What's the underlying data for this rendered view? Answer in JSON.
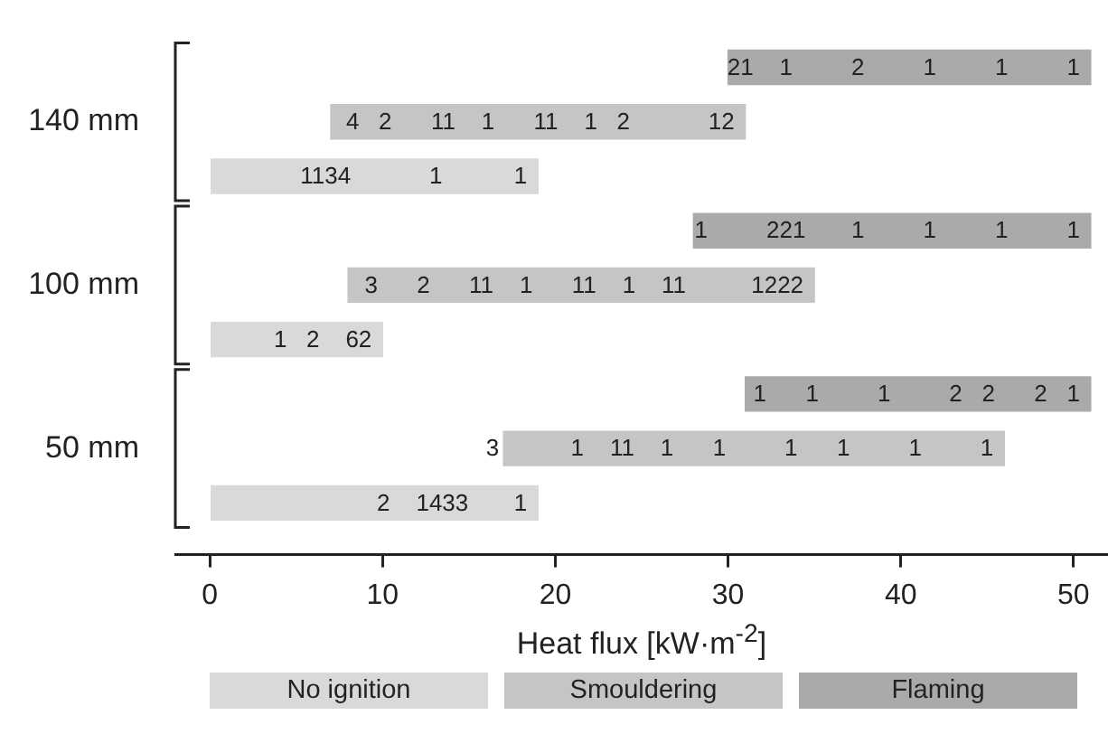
{
  "chart_data": {
    "type": "bar",
    "orientation": "horizontal",
    "xlabel": "Heat flux [kW·m$^{-2}$]",
    "categories": [
      null,
      "140 mm",
      null,
      null,
      "100 mm",
      null,
      null,
      "50 mm",
      null
    ],
    "xlim": [
      -2,
      52
    ],
    "xticks": [
      0,
      10,
      20,
      30,
      40,
      50
    ],
    "legend": "bottom",
    "annotations": [
      "21    1         2         1         1         1",
      "4   2      11    1      11    1   2            12",
      "1134            1           1",
      "1         221       1         1         1         1",
      "3      2      11    1      11    1    11          1222",
      "1   2    62",
      "1      1         1         2   2      2   1",
      "3           1    11    1      1         1      1         1         1",
      "2    1433       1"
    ],
    "series": [
      {
        "name": "No ignition",
        "color": "#d9d9d9",
        "values": [
          null,
          null,
          19,
          null,
          null,
          10,
          null,
          null,
          19
        ],
        "base": [
          null,
          null,
          0,
          null,
          null,
          0,
          null,
          null,
          0
        ]
      },
      {
        "name": "Smouldering",
        "color": "#c4c5c4",
        "values": [
          null,
          24,
          null,
          null,
          27,
          null,
          null,
          29,
          null
        ],
        "base": [
          null,
          7,
          null,
          null,
          8,
          null,
          null,
          17,
          null
        ]
      },
      {
        "name": "Flaming",
        "color": "#aaaaaa",
        "values": [
          21,
          null,
          null,
          23,
          null,
          null,
          20,
          null,
          null
        ],
        "base": [
          30,
          null,
          null,
          28,
          null,
          null,
          31,
          null,
          null
        ]
      }
    ]
  }
}
